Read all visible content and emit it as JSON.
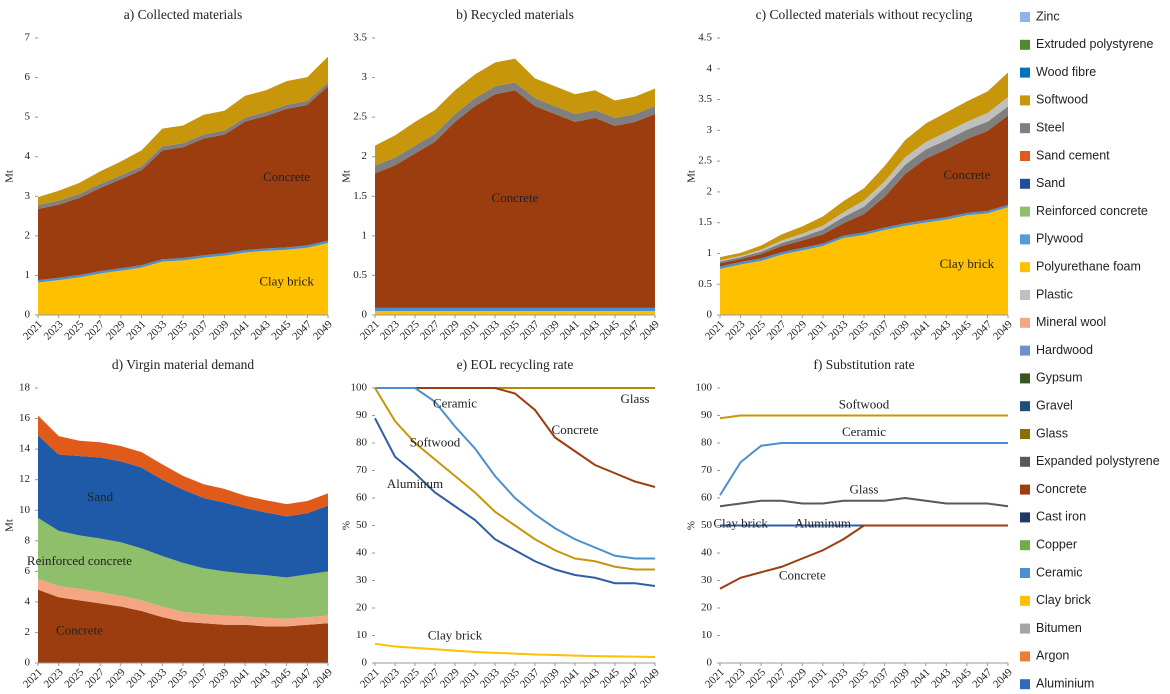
{
  "chart_data": [
    {
      "type": "stacked_area",
      "title": "a) Collected materials",
      "y_label": "Mt",
      "x": [
        2021,
        2023,
        2025,
        2027,
        2029,
        2031,
        2033,
        2035,
        2037,
        2039,
        2041,
        2043,
        2045,
        2047,
        2049
      ],
      "xticks": [
        2021,
        2023,
        2025,
        2027,
        2029,
        2031,
        2033,
        2035,
        2037,
        2039,
        2041,
        2043,
        2045,
        2047,
        2049
      ],
      "xlim": [
        2021,
        2049
      ],
      "ylim": [
        0,
        7
      ],
      "yticks": [
        0,
        1,
        2,
        3,
        4,
        5,
        6,
        7
      ],
      "series": [
        {
          "name": "Clay brick",
          "color": "#ffc000",
          "values": [
            0.82,
            0.88,
            0.95,
            1.05,
            1.12,
            1.2,
            1.35,
            1.38,
            1.45,
            1.5,
            1.58,
            1.62,
            1.65,
            1.7,
            1.82
          ]
        },
        {
          "name": "Ceramic",
          "color": "#4a90d0",
          "values": [
            0.06,
            0.06,
            0.06,
            0.06,
            0.06,
            0.06,
            0.06,
            0.06,
            0.06,
            0.06,
            0.06,
            0.06,
            0.06,
            0.06,
            0.06
          ]
        },
        {
          "name": "Concrete",
          "color": "#9c3d0f",
          "values": [
            1.8,
            1.85,
            1.95,
            2.1,
            2.25,
            2.4,
            2.75,
            2.8,
            2.95,
            3.0,
            3.25,
            3.35,
            3.5,
            3.55,
            3.9
          ]
        },
        {
          "name": "Steel",
          "color": "#7f7f7f",
          "values": [
            0.1,
            0.1,
            0.1,
            0.1,
            0.1,
            0.1,
            0.1,
            0.1,
            0.1,
            0.1,
            0.1,
            0.1,
            0.1,
            0.1,
            0.1
          ]
        },
        {
          "name": "Softwood",
          "color": "#c8960a",
          "values": [
            0.2,
            0.25,
            0.28,
            0.32,
            0.35,
            0.4,
            0.45,
            0.45,
            0.5,
            0.5,
            0.55,
            0.55,
            0.6,
            0.6,
            0.65
          ]
        }
      ]
    },
    {
      "type": "stacked_area",
      "title": "b) Recycled materials",
      "y_label": "Mt",
      "x": [
        2021,
        2023,
        2025,
        2027,
        2029,
        2031,
        2033,
        2035,
        2037,
        2039,
        2041,
        2043,
        2045,
        2047,
        2049
      ],
      "xticks": [
        2021,
        2023,
        2025,
        2027,
        2029,
        2031,
        2033,
        2035,
        2037,
        2039,
        2041,
        2043,
        2045,
        2047,
        2049
      ],
      "xlim": [
        2021,
        2049
      ],
      "ylim": [
        0,
        3.5
      ],
      "yticks": [
        0,
        0.5,
        1,
        1.5,
        2,
        2.5,
        3,
        3.5
      ],
      "series": [
        {
          "name": "Clay brick",
          "color": "#ffc000",
          "values": [
            0.05,
            0.05,
            0.05,
            0.05,
            0.05,
            0.05,
            0.05,
            0.05,
            0.05,
            0.05,
            0.05,
            0.05,
            0.05,
            0.05,
            0.05
          ]
        },
        {
          "name": "Ceramic",
          "color": "#4a90d0",
          "values": [
            0.04,
            0.04,
            0.04,
            0.04,
            0.04,
            0.04,
            0.04,
            0.04,
            0.04,
            0.04,
            0.04,
            0.04,
            0.04,
            0.04,
            0.04
          ]
        },
        {
          "name": "Concrete",
          "color": "#9c3d0f",
          "values": [
            1.7,
            1.8,
            1.95,
            2.1,
            2.35,
            2.55,
            2.7,
            2.75,
            2.55,
            2.45,
            2.35,
            2.4,
            2.3,
            2.35,
            2.45
          ]
        },
        {
          "name": "Steel",
          "color": "#7f7f7f",
          "values": [
            0.1,
            0.1,
            0.1,
            0.1,
            0.1,
            0.1,
            0.1,
            0.1,
            0.1,
            0.1,
            0.1,
            0.1,
            0.1,
            0.1,
            0.1
          ]
        },
        {
          "name": "Softwood",
          "color": "#c8960a",
          "values": [
            0.25,
            0.28,
            0.3,
            0.3,
            0.3,
            0.3,
            0.3,
            0.3,
            0.25,
            0.25,
            0.25,
            0.25,
            0.22,
            0.22,
            0.22
          ]
        }
      ]
    },
    {
      "type": "stacked_area",
      "title": "c) Collected materials without recycling",
      "y_label": "Mt",
      "x": [
        2021,
        2023,
        2025,
        2027,
        2029,
        2031,
        2033,
        2035,
        2037,
        2039,
        2041,
        2043,
        2045,
        2047,
        2049
      ],
      "xticks": [
        2021,
        2023,
        2025,
        2027,
        2029,
        2031,
        2033,
        2035,
        2037,
        2039,
        2041,
        2043,
        2045,
        2047,
        2049
      ],
      "xlim": [
        2021,
        2049
      ],
      "ylim": [
        0,
        4.5
      ],
      "yticks": [
        0,
        0.5,
        1,
        1.5,
        2,
        2.5,
        3,
        3.5,
        4,
        4.5
      ],
      "series": [
        {
          "name": "Clay brick",
          "color": "#ffc000",
          "values": [
            0.75,
            0.82,
            0.88,
            0.98,
            1.05,
            1.12,
            1.25,
            1.3,
            1.38,
            1.45,
            1.5,
            1.55,
            1.62,
            1.65,
            1.75
          ]
        },
        {
          "name": "Ceramic",
          "color": "#4a90d0",
          "values": [
            0.04,
            0.04,
            0.04,
            0.04,
            0.04,
            0.04,
            0.04,
            0.04,
            0.04,
            0.04,
            0.04,
            0.04,
            0.04,
            0.04,
            0.04
          ]
        },
        {
          "name": "Concrete",
          "color": "#9c3d0f",
          "values": [
            0.05,
            0.05,
            0.07,
            0.1,
            0.12,
            0.15,
            0.2,
            0.3,
            0.5,
            0.8,
            1.0,
            1.1,
            1.2,
            1.3,
            1.45
          ]
        },
        {
          "name": "Steel",
          "color": "#7f7f7f",
          "values": [
            0.03,
            0.03,
            0.04,
            0.05,
            0.06,
            0.08,
            0.1,
            0.12,
            0.15,
            0.15,
            0.15,
            0.15,
            0.15,
            0.15,
            0.15
          ]
        },
        {
          "name": "Plastic",
          "color": "#bfbfbf",
          "values": [
            0.02,
            0.02,
            0.03,
            0.04,
            0.05,
            0.06,
            0.08,
            0.1,
            0.1,
            0.12,
            0.12,
            0.13,
            0.13,
            0.14,
            0.15
          ]
        },
        {
          "name": "Softwood",
          "color": "#c8960a",
          "values": [
            0.05,
            0.05,
            0.07,
            0.1,
            0.12,
            0.15,
            0.18,
            0.2,
            0.25,
            0.28,
            0.3,
            0.32,
            0.33,
            0.35,
            0.4
          ]
        }
      ]
    },
    {
      "type": "stacked_area",
      "title": "d) Virgin material demand",
      "y_label": "Mt",
      "x": [
        2021,
        2023,
        2025,
        2027,
        2029,
        2031,
        2033,
        2035,
        2037,
        2039,
        2041,
        2043,
        2045,
        2047,
        2049
      ],
      "xticks": [
        2021,
        2023,
        2025,
        2027,
        2029,
        2031,
        2033,
        2035,
        2037,
        2039,
        2041,
        2043,
        2045,
        2047,
        2049
      ],
      "xlim": [
        2021,
        2049
      ],
      "ylim": [
        0,
        18
      ],
      "yticks": [
        0,
        2,
        4,
        6,
        8,
        10,
        12,
        14,
        16,
        18
      ],
      "series": [
        {
          "name": "Concrete",
          "color": "#9c3d0f",
          "values": [
            4.8,
            4.3,
            4.1,
            3.9,
            3.7,
            3.4,
            3.0,
            2.7,
            2.6,
            2.5,
            2.5,
            2.4,
            2.4,
            2.5,
            2.6
          ]
        },
        {
          "name": "Mineral wool",
          "color": "#f4a582",
          "values": [
            0.7,
            0.75,
            0.75,
            0.75,
            0.7,
            0.7,
            0.7,
            0.65,
            0.6,
            0.6,
            0.55,
            0.55,
            0.5,
            0.5,
            0.5
          ]
        },
        {
          "name": "Reinforced concrete",
          "color": "#8fbf6a",
          "values": [
            4.0,
            3.6,
            3.5,
            3.5,
            3.5,
            3.4,
            3.3,
            3.2,
            3.0,
            2.9,
            2.8,
            2.8,
            2.7,
            2.8,
            2.9
          ]
        },
        {
          "name": "Sand",
          "color": "#1f5aa8",
          "values": [
            5.4,
            5.0,
            5.2,
            5.3,
            5.3,
            5.3,
            5.0,
            4.8,
            4.6,
            4.5,
            4.3,
            4.1,
            4.0,
            4.0,
            4.3
          ]
        },
        {
          "name": "Sand cement",
          "color": "#e05a1a",
          "values": [
            1.3,
            1.2,
            1.0,
            1.0,
            1.0,
            1.0,
            1.0,
            0.9,
            0.9,
            0.9,
            0.8,
            0.8,
            0.8,
            0.8,
            0.8
          ]
        }
      ]
    },
    {
      "type": "line",
      "title": "e) EOL recycling rate",
      "y_label": "%",
      "x": [
        2021,
        2023,
        2025,
        2027,
        2029,
        2031,
        2033,
        2035,
        2037,
        2039,
        2041,
        2043,
        2045,
        2047,
        2049
      ],
      "xticks": [
        2021,
        2023,
        2025,
        2027,
        2029,
        2031,
        2033,
        2035,
        2037,
        2039,
        2041,
        2043,
        2045,
        2047,
        2049
      ],
      "xlim": [
        2021,
        2049
      ],
      "ylim": [
        0,
        100
      ],
      "yticks": [
        0,
        10,
        20,
        30,
        40,
        50,
        60,
        70,
        80,
        90,
        100
      ],
      "series": [
        {
          "name": "Glass",
          "color": "#b08a00",
          "values": [
            100,
            100,
            100,
            100,
            100,
            100,
            100,
            100,
            100,
            100,
            100,
            100,
            100,
            100,
            100
          ]
        },
        {
          "name": "Concrete",
          "color": "#9c3d0f",
          "values": [
            100,
            100,
            100,
            100,
            100,
            100,
            100,
            98,
            92,
            82,
            77,
            72,
            69,
            66,
            64
          ]
        },
        {
          "name": "Ceramic",
          "color": "#4a90d0",
          "values": [
            100,
            100,
            100,
            95,
            86,
            78,
            68,
            60,
            54,
            49,
            45,
            42,
            39,
            38,
            38
          ]
        },
        {
          "name": "Softwood",
          "color": "#c8960a",
          "values": [
            100,
            88,
            80,
            74,
            68,
            62,
            55,
            50,
            45,
            41,
            38,
            37,
            35,
            34,
            34
          ]
        },
        {
          "name": "Aluminum",
          "color": "#2e5ea8",
          "values": [
            89,
            75,
            69,
            62,
            57,
            52,
            45,
            41,
            37,
            34,
            32,
            31,
            29,
            29,
            28
          ]
        },
        {
          "name": "Clay brick",
          "color": "#ffc000",
          "values": [
            7,
            6,
            5.5,
            5,
            4.5,
            4,
            3.7,
            3.4,
            3.1,
            2.9,
            2.7,
            2.5,
            2.4,
            2.3,
            2.2
          ]
        }
      ]
    },
    {
      "type": "line",
      "title": "f) Substitution rate",
      "y_label": "%",
      "x": [
        2021,
        2023,
        2025,
        2027,
        2029,
        2031,
        2033,
        2035,
        2037,
        2039,
        2041,
        2043,
        2045,
        2047,
        2049
      ],
      "xticks": [
        2021,
        2023,
        2025,
        2027,
        2029,
        2031,
        2033,
        2035,
        2037,
        2039,
        2041,
        2043,
        2045,
        2047,
        2049
      ],
      "xlim": [
        2021,
        2049
      ],
      "ylim": [
        0,
        100
      ],
      "yticks": [
        0,
        10,
        20,
        30,
        40,
        50,
        60,
        70,
        80,
        90,
        100
      ],
      "series": [
        {
          "name": "Softwood",
          "color": "#c8960a",
          "values": [
            89,
            90,
            90,
            90,
            90,
            90,
            90,
            90,
            90,
            90,
            90,
            90,
            90,
            90,
            90
          ]
        },
        {
          "name": "Ceramic",
          "color": "#4a90d0",
          "values": [
            61,
            73,
            79,
            80,
            80,
            80,
            80,
            80,
            80,
            80,
            80,
            80,
            80,
            80,
            80
          ]
        },
        {
          "name": "Glass",
          "color": "#595959",
          "values": [
            57,
            58,
            59,
            59,
            58,
            58,
            59,
            59,
            59,
            60,
            59,
            58,
            58,
            58,
            57
          ]
        },
        {
          "name": "Clay brick",
          "color": "#ffc000",
          "values": [
            50,
            50,
            50,
            50,
            50,
            50,
            50,
            50,
            50,
            50,
            50,
            50,
            50,
            50,
            50
          ]
        },
        {
          "name": "Aluminum",
          "color": "#2e5ea8",
          "values": [
            50,
            50,
            50,
            50,
            50,
            50,
            50,
            50,
            50,
            50,
            50,
            50,
            50,
            50,
            50
          ]
        },
        {
          "name": "Concrete",
          "color": "#9c3d0f",
          "values": [
            27,
            31,
            33,
            35,
            38,
            41,
            45,
            50,
            50,
            50,
            50,
            50,
            50,
            50,
            50
          ]
        }
      ]
    }
  ],
  "legend": {
    "entries": [
      {
        "name": "Zinc",
        "color": "#8eb4e3"
      },
      {
        "name": "Extruded polystyrene",
        "color": "#4f8a2f"
      },
      {
        "name": "Wood fibre",
        "color": "#0070c0"
      },
      {
        "name": "Softwood",
        "color": "#c8960a"
      },
      {
        "name": "Steel",
        "color": "#7f7f7f"
      },
      {
        "name": "Sand cement",
        "color": "#e05a1a"
      },
      {
        "name": "Sand",
        "color": "#1f4e9a"
      },
      {
        "name": "Reinforced concrete",
        "color": "#8fbf6a"
      },
      {
        "name": "Plywood",
        "color": "#5b9bd5"
      },
      {
        "name": "Polyurethane foam",
        "color": "#ffc000"
      },
      {
        "name": "Plastic",
        "color": "#bfbfbf"
      },
      {
        "name": "Mineral wool",
        "color": "#f4a582"
      },
      {
        "name": "Hardwood",
        "color": "#6f8fd0"
      },
      {
        "name": "Gypsum",
        "color": "#375623"
      },
      {
        "name": "Gravel",
        "color": "#1f4e79"
      },
      {
        "name": "Glass",
        "color": "#8c6d00"
      },
      {
        "name": "Expanded polystyrene",
        "color": "#595959"
      },
      {
        "name": "Concrete",
        "color": "#9c3d0f"
      },
      {
        "name": "Cast iron",
        "color": "#1f3864"
      },
      {
        "name": "Copper",
        "color": "#70ad47"
      },
      {
        "name": "Ceramic",
        "color": "#4a90d0"
      },
      {
        "name": "Clay brick",
        "color": "#ffc000"
      },
      {
        "name": "Bitumen",
        "color": "#a5a5a5"
      },
      {
        "name": "Argon",
        "color": "#ed7d31"
      },
      {
        "name": "Aluminium",
        "color": "#2e6bb8"
      }
    ]
  }
}
